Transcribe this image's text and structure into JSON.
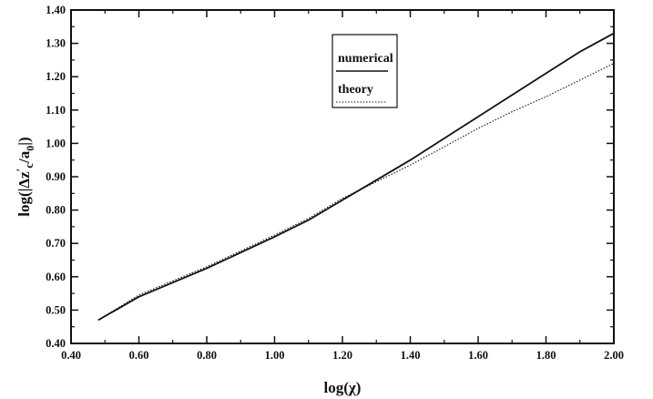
{
  "chart_data": {
    "type": "line",
    "title": "",
    "xlabel": "log(χ)",
    "ylabel_parts": {
      "pre": "log(|Δz",
      "prime": "′",
      "sub_c": "c",
      "mid": "/a",
      "sub_0": "0",
      "post": "|)"
    },
    "xlim": [
      0.4,
      2.0
    ],
    "ylim": [
      0.4,
      1.4
    ],
    "xticks": [
      0.4,
      0.6,
      0.8,
      1.0,
      1.2,
      1.4,
      1.6,
      1.8,
      2.0
    ],
    "xtick_labels": [
      "0.40",
      "0.60",
      "0.80",
      "1.00",
      "1.20",
      "1.40",
      "1.60",
      "1.80",
      "2.00"
    ],
    "yticks": [
      0.4,
      0.5,
      0.6,
      0.7,
      0.8,
      0.9,
      1.0,
      1.1,
      1.2,
      1.3,
      1.4
    ],
    "ytick_labels": [
      "0.40",
      "0.50",
      "0.60",
      "0.70",
      "0.80",
      "0.90",
      "1.00",
      "1.10",
      "1.20",
      "1.30",
      "1.40"
    ],
    "grid": false,
    "legend_position": "top-center",
    "series": [
      {
        "name": "numerical",
        "style": "solid",
        "x": [
          0.48,
          0.6,
          0.8,
          1.0,
          1.1,
          1.2,
          1.3,
          1.4,
          1.5,
          1.6,
          1.7,
          1.8,
          1.9,
          2.0
        ],
        "y": [
          0.47,
          0.54,
          0.625,
          0.72,
          0.77,
          0.83,
          0.89,
          0.95,
          1.015,
          1.08,
          1.145,
          1.21,
          1.275,
          1.33
        ]
      },
      {
        "name": "theory",
        "style": "dotted",
        "x": [
          0.48,
          0.6,
          0.8,
          1.0,
          1.1,
          1.2,
          1.3,
          1.4,
          1.5,
          1.6,
          1.7,
          1.8,
          1.9,
          2.0
        ],
        "y": [
          0.47,
          0.545,
          0.63,
          0.725,
          0.775,
          0.835,
          0.885,
          0.935,
          0.99,
          1.045,
          1.095,
          1.14,
          1.19,
          1.24
        ]
      }
    ]
  }
}
